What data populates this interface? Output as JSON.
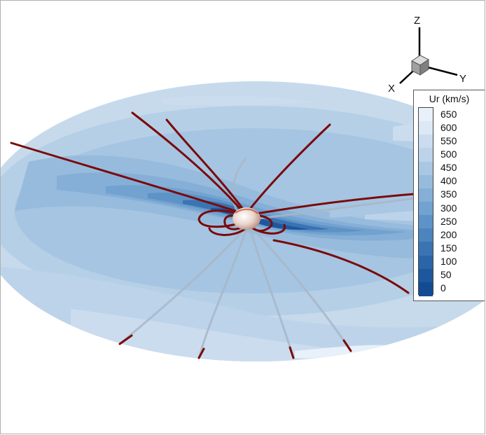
{
  "triad": {
    "z_label": "Z",
    "y_label": "Y",
    "x_label": "X"
  },
  "legend": {
    "title": "Ur (km/s)",
    "levels": [
      "650",
      "600",
      "550",
      "500",
      "450",
      "400",
      "350",
      "300",
      "250",
      "200",
      "150",
      "100",
      "50",
      "0"
    ],
    "colors": [
      "#e8f0fa",
      "#dde8f5",
      "#cbdcee",
      "#bcd3ea",
      "#a9c7e3",
      "#97bbdc",
      "#85afd6",
      "#72a2cf",
      "#5e93c7",
      "#4c84bd",
      "#3a74b3",
      "#2b65a8",
      "#1d579d",
      "#124b93"
    ]
  },
  "field_lines_color": "#7a0a0a"
}
